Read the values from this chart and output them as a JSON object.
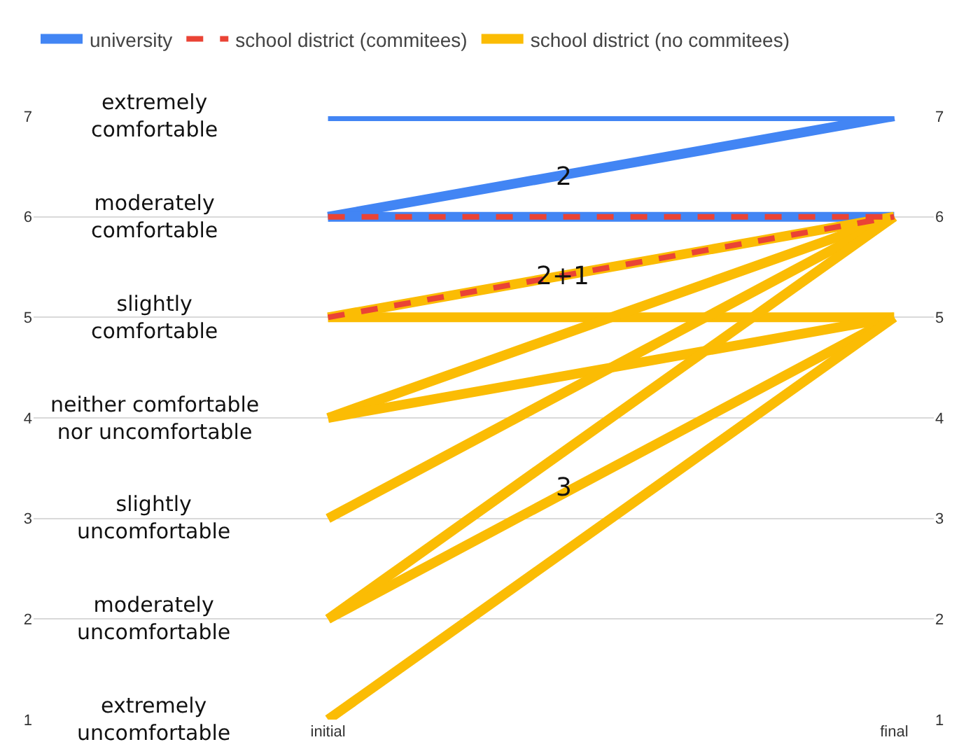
{
  "chart_data": {
    "type": "line",
    "categories": [
      "initial",
      "final"
    ],
    "series": [
      {
        "name": "university",
        "color": "#4285f4",
        "values": [
          7,
          7
        ]
      },
      {
        "color": "#4285f4",
        "values": [
          6,
          7
        ]
      },
      {
        "color": "#4285f4",
        "values": [
          6,
          6
        ]
      },
      {
        "name": "school district (commitees)",
        "color": "#ea4335",
        "values": [
          6,
          6
        ],
        "line_style": "dashed"
      },
      {
        "color": "#ea4335",
        "values": [
          5,
          6
        ],
        "line_style": "dashed"
      },
      {
        "name": "school district (no commitees)",
        "color": "#fbbc04",
        "values": [
          5,
          6
        ]
      },
      {
        "color": "#fbbc04",
        "values": [
          5,
          5
        ]
      },
      {
        "color": "#fbbc04",
        "values": [
          4,
          6
        ]
      },
      {
        "color": "#fbbc04",
        "values": [
          4,
          5
        ]
      },
      {
        "color": "#fbbc04",
        "values": [
          3,
          6
        ]
      },
      {
        "color": "#fbbc04",
        "values": [
          2,
          6
        ]
      },
      {
        "color": "#fbbc04",
        "values": [
          2,
          5
        ]
      },
      {
        "color": "#fbbc04",
        "values": [
          1,
          5
        ]
      }
    ],
    "ylim": [
      1,
      7
    ],
    "yticks": [
      1,
      2,
      3,
      4,
      5,
      6,
      7
    ],
    "y2lim": [
      1,
      7
    ],
    "y2ticks": [
      1,
      2,
      3,
      4,
      5,
      6,
      7
    ],
    "grid": "y",
    "legend": "top left",
    "marker": "none",
    "line_style": "solid",
    "annotations": [
      "extremely comfortable",
      "moderately comfortable",
      "slightly comfortable",
      "neither comfortable nor uncomfortable",
      "slightly uncomfortable",
      "moderately uncomfortable",
      "extremely uncomfortable",
      {
        "text": "2",
        "y": 6.4
      },
      {
        "text": "2+1",
        "y": 5.4
      },
      {
        "text": "3",
        "y": 3.3
      }
    ]
  }
}
